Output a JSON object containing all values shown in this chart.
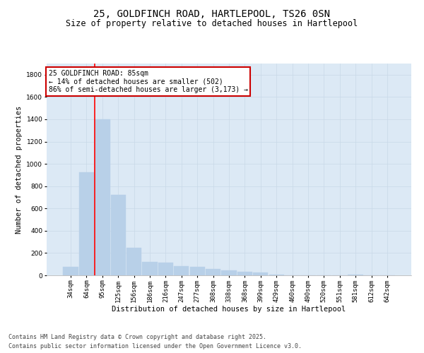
{
  "title_line1": "25, GOLDFINCH ROAD, HARTLEPOOL, TS26 0SN",
  "title_line2": "Size of property relative to detached houses in Hartlepool",
  "xlabel": "Distribution of detached houses by size in Hartlepool",
  "ylabel": "Number of detached properties",
  "categories": [
    "34sqm",
    "64sqm",
    "95sqm",
    "125sqm",
    "156sqm",
    "186sqm",
    "216sqm",
    "247sqm",
    "277sqm",
    "308sqm",
    "338sqm",
    "368sqm",
    "399sqm",
    "429sqm",
    "460sqm",
    "490sqm",
    "520sqm",
    "551sqm",
    "581sqm",
    "612sqm",
    "642sqm"
  ],
  "values": [
    75,
    925,
    1400,
    720,
    245,
    120,
    115,
    80,
    75,
    55,
    45,
    30,
    25,
    5,
    0,
    0,
    0,
    0,
    5,
    0,
    0
  ],
  "bar_color": "#b8d0e8",
  "bar_edge_color": "#b8d0e8",
  "grid_color": "#c8d8e8",
  "background_color": "#dce9f5",
  "property_label": "25 GOLDFINCH ROAD: 85sqm",
  "pct_smaller": 14,
  "n_smaller": 502,
  "pct_larger": 86,
  "n_larger": 3173,
  "red_line_x": 1.5,
  "ylim": [
    0,
    1900
  ],
  "yticks": [
    0,
    200,
    400,
    600,
    800,
    1000,
    1200,
    1400,
    1600,
    1800
  ],
  "footer_line1": "Contains HM Land Registry data © Crown copyright and database right 2025.",
  "footer_line2": "Contains public sector information licensed under the Open Government Licence v3.0.",
  "annotation_box_color": "#cc0000",
  "title_fontsize": 10,
  "subtitle_fontsize": 8.5,
  "axis_label_fontsize": 7.5,
  "tick_fontsize": 6.5,
  "annotation_fontsize": 7,
  "footer_fontsize": 6
}
